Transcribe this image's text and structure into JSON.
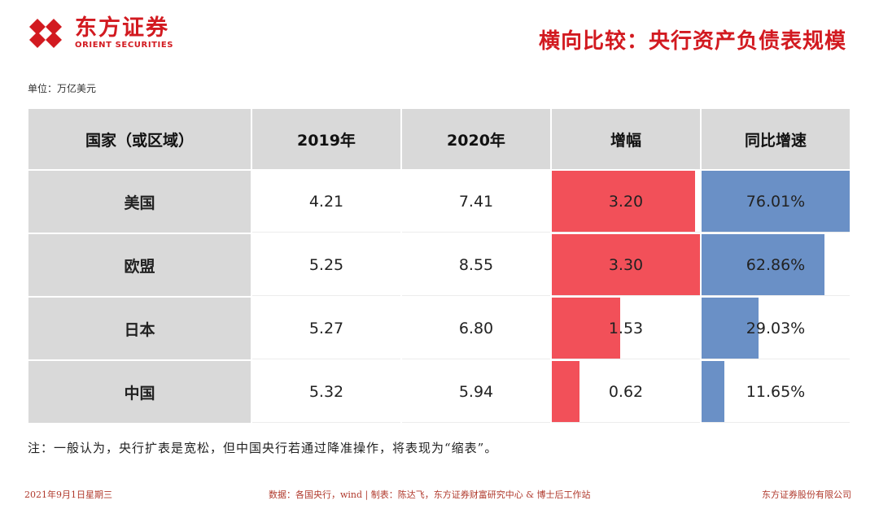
{
  "header": {
    "logo_cn": "东方证券",
    "logo_en": "ORIENT SECURITIES",
    "title": "横向比较：央行资产负债表规模"
  },
  "unit": "单位：万亿美元",
  "table": {
    "headers": [
      "国家（或区域）",
      "2019年",
      "2020年",
      "增幅",
      "同比增速"
    ],
    "rows": [
      {
        "country": "美国",
        "y2019": "4.21",
        "y2020": "7.41",
        "increase": "3.20",
        "growth": "76.01%"
      },
      {
        "country": "欧盟",
        "y2019": "5.25",
        "y2020": "8.55",
        "increase": "3.30",
        "growth": "62.86%"
      },
      {
        "country": "日本",
        "y2019": "5.27",
        "y2020": "6.80",
        "increase": "1.53",
        "growth": "29.03%"
      },
      {
        "country": "中国",
        "y2019": "5.32",
        "y2020": "5.94",
        "increase": "0.62",
        "growth": "11.65%"
      }
    ],
    "increase_values": [
      3.2,
      3.3,
      1.53,
      0.62
    ],
    "growth_values": [
      76.01,
      62.86,
      29.03,
      11.65
    ],
    "colors": {
      "increase_bar": "#f25059",
      "growth_bar": "#6a90c6",
      "header_bg": "#d9d9d9"
    }
  },
  "note": "注：一般认为，央行扩表是宽松，但中国央行若通过降准操作，将表现为“缩表”。",
  "footer": {
    "date": "2021年9月1日星期三",
    "source": "数据：各国央行，wind  | 制表：陈达飞，东方证券财富研究中心 & 博士后工作站",
    "company": "东方证券股份有限公司"
  }
}
